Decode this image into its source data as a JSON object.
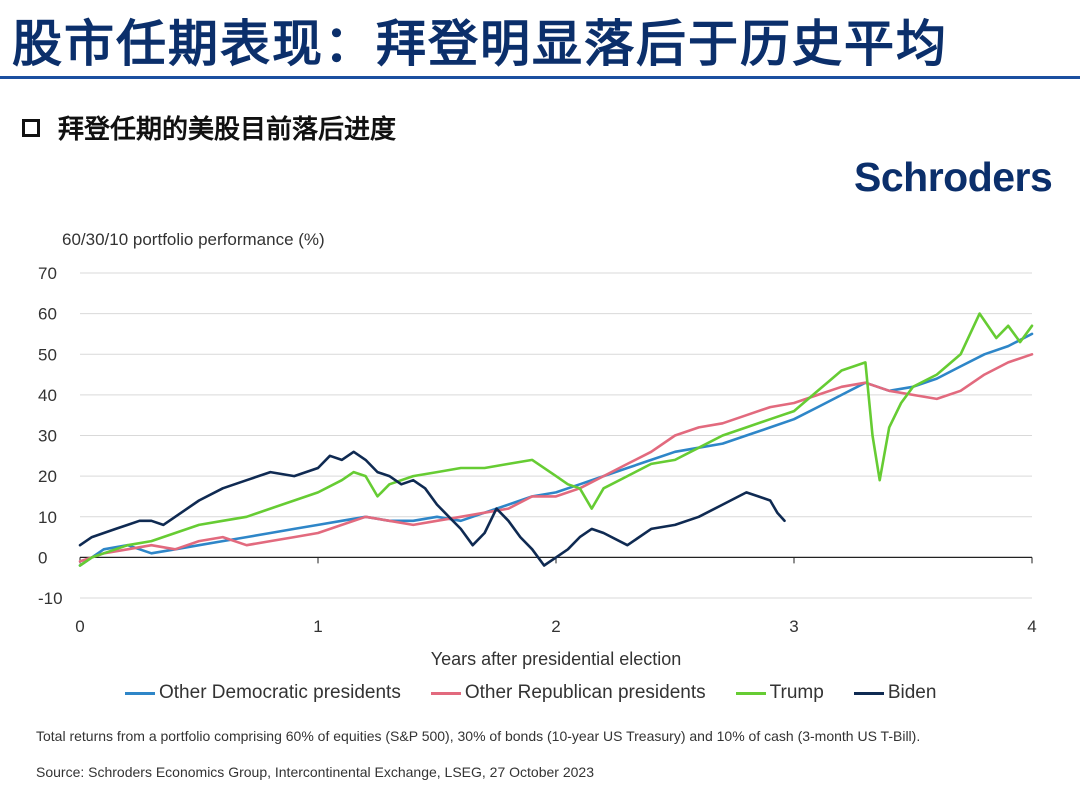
{
  "page": {
    "title": "股市任期表现：拜登明显落后于历史平均",
    "subtitle": "拜登任期的美股目前落后进度",
    "logo": "Schroders",
    "note": "Total returns from a portfolio comprising  60% of equities (S&P 500), 30% of bonds (10-year  US Treasury) and 10% of cash (3-month US T-Bill).",
    "source": "Source:  Schroders  Economics  Group,  Intercontinental  Exchange,  LSEG,  27 October  2023"
  },
  "colors": {
    "title": "#0b2f6b",
    "rule": "#1b4fa0",
    "democratic": "#2e86c8",
    "republican": "#e26a7e",
    "trump": "#66cc33",
    "biden": "#0f2a52"
  },
  "chart_data": {
    "type": "line",
    "ylabel": "60/30/10 portfolio performance (%)",
    "xlabel": "Years after presidential election",
    "xlim": [
      0,
      4
    ],
    "ylim": [
      -10,
      70
    ],
    "xticks": [
      0,
      1,
      2,
      3,
      4
    ],
    "yticks": [
      -10,
      0,
      10,
      20,
      30,
      40,
      50,
      60,
      70
    ],
    "grid": "horizontal",
    "legend_position": "bottom",
    "series": [
      {
        "name": "Other Democratic presidents",
        "color": "#2e86c8",
        "x": [
          0,
          0.05,
          0.1,
          0.2,
          0.3,
          0.4,
          0.5,
          0.6,
          0.7,
          0.8,
          0.9,
          1.0,
          1.1,
          1.2,
          1.3,
          1.4,
          1.5,
          1.6,
          1.7,
          1.8,
          1.9,
          2.0,
          2.1,
          2.2,
          2.3,
          2.4,
          2.5,
          2.6,
          2.7,
          2.8,
          2.9,
          3.0,
          3.1,
          3.2,
          3.3,
          3.4,
          3.5,
          3.6,
          3.7,
          3.8,
          3.9,
          4.0
        ],
        "y": [
          -2,
          0,
          2,
          3,
          1,
          2,
          3,
          4,
          5,
          6,
          7,
          8,
          9,
          10,
          9,
          9,
          10,
          9,
          11,
          13,
          15,
          16,
          18,
          20,
          22,
          24,
          26,
          27,
          28,
          30,
          32,
          34,
          37,
          40,
          43,
          41,
          42,
          44,
          47,
          50,
          52,
          55
        ]
      },
      {
        "name": "Other Republican presidents",
        "color": "#e26a7e",
        "x": [
          0,
          0.05,
          0.1,
          0.2,
          0.3,
          0.4,
          0.5,
          0.6,
          0.7,
          0.8,
          0.9,
          1.0,
          1.1,
          1.2,
          1.3,
          1.4,
          1.5,
          1.6,
          1.7,
          1.8,
          1.9,
          2.0,
          2.1,
          2.2,
          2.3,
          2.4,
          2.5,
          2.6,
          2.7,
          2.8,
          2.9,
          3.0,
          3.1,
          3.2,
          3.3,
          3.4,
          3.5,
          3.6,
          3.7,
          3.8,
          3.9,
          4.0
        ],
        "y": [
          -1,
          0,
          1,
          2,
          3,
          2,
          4,
          5,
          3,
          4,
          5,
          6,
          8,
          10,
          9,
          8,
          9,
          10,
          11,
          12,
          15,
          15,
          17,
          20,
          23,
          26,
          30,
          32,
          33,
          35,
          37,
          38,
          40,
          42,
          43,
          41,
          40,
          39,
          41,
          45,
          48,
          50
        ]
      },
      {
        "name": "Trump",
        "color": "#66cc33",
        "x": [
          0,
          0.05,
          0.1,
          0.2,
          0.3,
          0.4,
          0.5,
          0.6,
          0.7,
          0.8,
          0.9,
          1.0,
          1.1,
          1.15,
          1.2,
          1.25,
          1.3,
          1.4,
          1.5,
          1.6,
          1.7,
          1.8,
          1.9,
          2.0,
          2.05,
          2.1,
          2.15,
          2.2,
          2.3,
          2.4,
          2.5,
          2.6,
          2.7,
          2.8,
          2.9,
          3.0,
          3.1,
          3.2,
          3.3,
          3.33,
          3.36,
          3.4,
          3.45,
          3.5,
          3.6,
          3.7,
          3.78,
          3.85,
          3.9,
          3.95,
          4.0
        ],
        "y": [
          -2,
          0,
          1,
          3,
          4,
          6,
          8,
          9,
          10,
          12,
          14,
          16,
          19,
          21,
          20,
          15,
          18,
          20,
          21,
          22,
          22,
          23,
          24,
          20,
          18,
          17,
          12,
          17,
          20,
          23,
          24,
          27,
          30,
          32,
          34,
          36,
          41,
          46,
          48,
          30,
          19,
          32,
          38,
          42,
          45,
          50,
          60,
          54,
          57,
          53,
          57
        ]
      },
      {
        "name": "Biden",
        "color": "#0f2a52",
        "x": [
          0,
          0.05,
          0.1,
          0.15,
          0.2,
          0.25,
          0.3,
          0.35,
          0.4,
          0.5,
          0.6,
          0.7,
          0.8,
          0.9,
          1.0,
          1.05,
          1.1,
          1.15,
          1.2,
          1.25,
          1.3,
          1.35,
          1.4,
          1.45,
          1.5,
          1.55,
          1.6,
          1.65,
          1.7,
          1.75,
          1.8,
          1.85,
          1.9,
          1.95,
          2.0,
          2.05,
          2.1,
          2.15,
          2.2,
          2.3,
          2.4,
          2.5,
          2.6,
          2.7,
          2.8,
          2.85,
          2.9,
          2.93,
          2.96
        ],
        "y": [
          3,
          5,
          6,
          7,
          8,
          9,
          9,
          8,
          10,
          14,
          17,
          19,
          21,
          20,
          22,
          25,
          24,
          26,
          24,
          21,
          20,
          18,
          19,
          17,
          13,
          10,
          7,
          3,
          6,
          12,
          9,
          5,
          2,
          -2,
          0,
          2,
          5,
          7,
          6,
          3,
          7,
          8,
          10,
          13,
          16,
          15,
          14,
          11,
          9
        ]
      }
    ]
  }
}
